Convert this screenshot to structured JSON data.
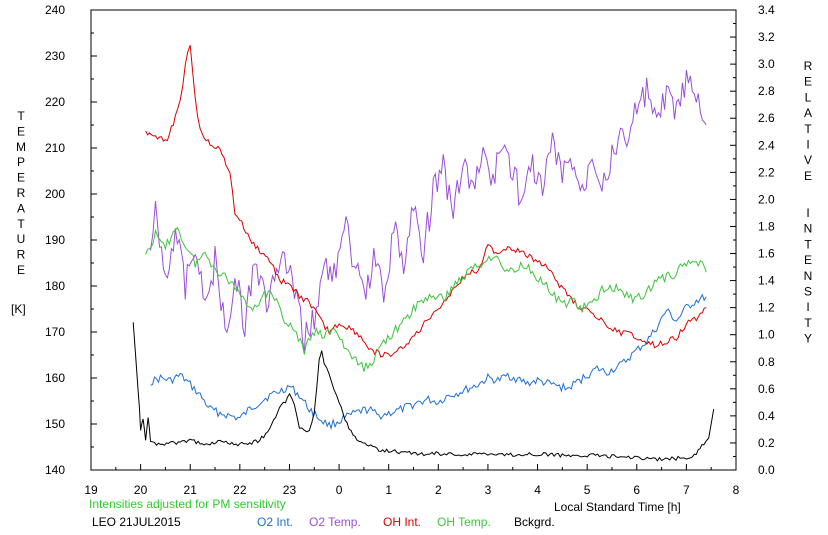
{
  "chart_data": {
    "type": "line",
    "title": "",
    "left_axis": {
      "label_letters": [
        "T",
        "E",
        "M",
        "P",
        "E",
        "R",
        "A",
        "T",
        "U",
        "R",
        "E"
      ],
      "unit": "[K]",
      "ylim": [
        140,
        240
      ],
      "ticks": [
        "140",
        "150",
        "160",
        "170",
        "180",
        "190",
        "200",
        "210",
        "220",
        "230",
        "240"
      ]
    },
    "right_axis": {
      "label_letters_word1": [
        "R",
        "E",
        "L",
        "A",
        "T",
        "I",
        "V",
        "E"
      ],
      "label_letters_word2": [
        "I",
        "N",
        "T",
        "E",
        "N",
        "S",
        "I",
        "T",
        "Y"
      ],
      "ylim": [
        0.0,
        3.4
      ],
      "ticks": [
        "0.0",
        "0.2",
        "0.4",
        "0.6",
        "0.8",
        "1.0",
        "1.2",
        "1.4",
        "1.6",
        "1.8",
        "2.0",
        "2.2",
        "2.4",
        "2.6",
        "2.8",
        "3.0",
        "3.2",
        "3.4"
      ]
    },
    "x_axis": {
      "label": "Local Standard Time [h]",
      "xlim": [
        19,
        32
      ],
      "ticks": [
        "19",
        "20",
        "21",
        "22",
        "23",
        "0",
        "1",
        "2",
        "3",
        "4",
        "5",
        "6",
        "7",
        "8"
      ]
    },
    "note": "Intensities adjusted for PM sensitivity",
    "site_date": "LEO 21JUL2015",
    "colors": {
      "O2 Int.": "#1f6fd6",
      "O2 Temp.": "#9a4fd6",
      "OH Int.": "#d80000",
      "OH Temp.": "#3ec43e",
      "Bckgrd.": "#000000",
      "note": "#2ecc2e"
    },
    "series": [
      {
        "name": "O2 Int.",
        "axis": "right",
        "points": [
          [
            20.2,
            0.65
          ],
          [
            20.4,
            0.68
          ],
          [
            20.6,
            0.66
          ],
          [
            20.8,
            0.7
          ],
          [
            21.0,
            0.63
          ],
          [
            21.2,
            0.55
          ],
          [
            21.4,
            0.45
          ],
          [
            21.6,
            0.42
          ],
          [
            21.8,
            0.4
          ],
          [
            22.0,
            0.38
          ],
          [
            22.2,
            0.45
          ],
          [
            22.4,
            0.5
          ],
          [
            22.6,
            0.55
          ],
          [
            22.8,
            0.58
          ],
          [
            23.0,
            0.62
          ],
          [
            23.2,
            0.55
          ],
          [
            23.4,
            0.45
          ],
          [
            23.6,
            0.38
          ],
          [
            23.8,
            0.33
          ],
          [
            24.0,
            0.36
          ],
          [
            24.2,
            0.4
          ],
          [
            24.4,
            0.43
          ],
          [
            24.6,
            0.45
          ],
          [
            24.8,
            0.4
          ],
          [
            25.0,
            0.42
          ],
          [
            25.2,
            0.44
          ],
          [
            25.4,
            0.47
          ],
          [
            25.6,
            0.5
          ],
          [
            25.8,
            0.52
          ],
          [
            26.0,
            0.5
          ],
          [
            26.2,
            0.55
          ],
          [
            26.4,
            0.57
          ],
          [
            26.6,
            0.6
          ],
          [
            26.8,
            0.63
          ],
          [
            27.0,
            0.68
          ],
          [
            27.2,
            0.66
          ],
          [
            27.4,
            0.7
          ],
          [
            27.6,
            0.67
          ],
          [
            27.8,
            0.64
          ],
          [
            28.0,
            0.66
          ],
          [
            28.2,
            0.64
          ],
          [
            28.4,
            0.62
          ],
          [
            28.6,
            0.6
          ],
          [
            28.8,
            0.65
          ],
          [
            29.0,
            0.7
          ],
          [
            29.2,
            0.75
          ],
          [
            29.4,
            0.72
          ],
          [
            29.7,
            0.78
          ],
          [
            29.9,
            0.85
          ],
          [
            30.2,
            0.95
          ],
          [
            30.4,
            1.05
          ],
          [
            30.6,
            1.18
          ],
          [
            30.8,
            1.1
          ],
          [
            31.0,
            1.2
          ],
          [
            31.2,
            1.25
          ],
          [
            31.4,
            1.28
          ]
        ]
      },
      {
        "name": "O2 Temp.",
        "axis": "left",
        "points": [
          [
            20.2,
            185
          ],
          [
            20.3,
            197
          ],
          [
            20.5,
            182
          ],
          [
            20.7,
            193
          ],
          [
            20.9,
            180
          ],
          [
            21.1,
            190
          ],
          [
            21.3,
            174
          ],
          [
            21.5,
            186
          ],
          [
            21.7,
            170
          ],
          [
            21.9,
            182
          ],
          [
            22.1,
            172
          ],
          [
            22.3,
            187
          ],
          [
            22.5,
            176
          ],
          [
            22.7,
            181
          ],
          [
            22.9,
            186
          ],
          [
            23.1,
            178
          ],
          [
            23.3,
            168
          ],
          [
            23.5,
            174
          ],
          [
            23.7,
            184
          ],
          [
            23.9,
            182
          ],
          [
            24.1,
            195
          ],
          [
            24.3,
            184
          ],
          [
            24.5,
            178
          ],
          [
            24.7,
            186
          ],
          [
            24.9,
            179
          ],
          [
            25.1,
            192
          ],
          [
            25.3,
            185
          ],
          [
            25.5,
            198
          ],
          [
            25.7,
            188
          ],
          [
            25.9,
            200
          ],
          [
            26.1,
            206
          ],
          [
            26.3,
            195
          ],
          [
            26.5,
            208
          ],
          [
            26.7,
            200
          ],
          [
            26.9,
            210
          ],
          [
            27.1,
            202
          ],
          [
            27.3,
            212
          ],
          [
            27.5,
            205
          ],
          [
            27.7,
            198
          ],
          [
            27.9,
            207
          ],
          [
            28.1,
            200
          ],
          [
            28.3,
            212
          ],
          [
            28.5,
            203
          ],
          [
            28.7,
            208
          ],
          [
            28.9,
            200
          ],
          [
            29.1,
            210
          ],
          [
            29.3,
            203
          ],
          [
            29.5,
            208
          ],
          [
            29.8,
            213
          ],
          [
            30.0,
            218
          ],
          [
            30.2,
            222
          ],
          [
            30.4,
            215
          ],
          [
            30.6,
            221
          ],
          [
            30.8,
            218
          ],
          [
            31.0,
            224
          ],
          [
            31.2,
            220
          ],
          [
            31.4,
            215
          ]
        ]
      },
      {
        "name": "OH Int.",
        "axis": "right",
        "points": [
          [
            20.1,
            2.5
          ],
          [
            20.3,
            2.48
          ],
          [
            20.5,
            2.42
          ],
          [
            20.7,
            2.6
          ],
          [
            20.8,
            2.72
          ],
          [
            20.9,
            3.0
          ],
          [
            21.0,
            3.15
          ],
          [
            21.1,
            2.75
          ],
          [
            21.2,
            2.5
          ],
          [
            21.4,
            2.42
          ],
          [
            21.6,
            2.36
          ],
          [
            21.8,
            2.2
          ],
          [
            21.9,
            1.9
          ],
          [
            22.0,
            1.85
          ],
          [
            22.2,
            1.7
          ],
          [
            22.4,
            1.62
          ],
          [
            22.6,
            1.55
          ],
          [
            22.8,
            1.4
          ],
          [
            23.0,
            1.38
          ],
          [
            23.2,
            1.28
          ],
          [
            23.4,
            1.24
          ],
          [
            23.6,
            1.12
          ],
          [
            23.8,
            1.02
          ],
          [
            24.0,
            1.08
          ],
          [
            24.2,
            1.05
          ],
          [
            24.4,
            1.0
          ],
          [
            24.6,
            0.9
          ],
          [
            24.8,
            0.86
          ],
          [
            25.0,
            0.84
          ],
          [
            25.2,
            0.88
          ],
          [
            25.4,
            0.95
          ],
          [
            25.6,
            1.02
          ],
          [
            25.8,
            1.12
          ],
          [
            26.0,
            1.2
          ],
          [
            26.2,
            1.28
          ],
          [
            26.4,
            1.38
          ],
          [
            26.6,
            1.45
          ],
          [
            26.8,
            1.48
          ],
          [
            27.0,
            1.65
          ],
          [
            27.2,
            1.6
          ],
          [
            27.4,
            1.65
          ],
          [
            27.6,
            1.62
          ],
          [
            27.8,
            1.58
          ],
          [
            28.0,
            1.55
          ],
          [
            28.2,
            1.5
          ],
          [
            28.4,
            1.38
          ],
          [
            28.6,
            1.3
          ],
          [
            28.8,
            1.22
          ],
          [
            29.0,
            1.18
          ],
          [
            29.2,
            1.12
          ],
          [
            29.4,
            1.08
          ],
          [
            29.6,
            1.02
          ],
          [
            29.9,
            1.0
          ],
          [
            30.2,
            0.95
          ],
          [
            30.4,
            0.92
          ],
          [
            30.6,
            0.95
          ],
          [
            30.8,
            0.98
          ],
          [
            31.0,
            1.08
          ],
          [
            31.2,
            1.12
          ],
          [
            31.4,
            1.2
          ]
        ]
      },
      {
        "name": "OH Temp.",
        "axis": "left",
        "points": [
          [
            20.1,
            187
          ],
          [
            20.3,
            191
          ],
          [
            20.5,
            188
          ],
          [
            20.7,
            193
          ],
          [
            20.9,
            189
          ],
          [
            21.1,
            185
          ],
          [
            21.3,
            187
          ],
          [
            21.5,
            184
          ],
          [
            21.7,
            182
          ],
          [
            21.9,
            180
          ],
          [
            22.1,
            177
          ],
          [
            22.3,
            175
          ],
          [
            22.5,
            179
          ],
          [
            22.7,
            177
          ],
          [
            22.9,
            173
          ],
          [
            23.1,
            170
          ],
          [
            23.3,
            166
          ],
          [
            23.5,
            170
          ],
          [
            23.7,
            169
          ],
          [
            23.9,
            171
          ],
          [
            24.1,
            167
          ],
          [
            24.3,
            164
          ],
          [
            24.5,
            162
          ],
          [
            24.7,
            164
          ],
          [
            24.9,
            168
          ],
          [
            25.1,
            170
          ],
          [
            25.3,
            172
          ],
          [
            25.5,
            175
          ],
          [
            25.7,
            177
          ],
          [
            25.9,
            178
          ],
          [
            26.1,
            177
          ],
          [
            26.3,
            180
          ],
          [
            26.5,
            182
          ],
          [
            26.7,
            184
          ],
          [
            26.9,
            185
          ],
          [
            27.1,
            187
          ],
          [
            27.3,
            184
          ],
          [
            27.5,
            183
          ],
          [
            27.7,
            185
          ],
          [
            27.9,
            183
          ],
          [
            28.1,
            181
          ],
          [
            28.3,
            178
          ],
          [
            28.5,
            176
          ],
          [
            28.7,
            177
          ],
          [
            28.9,
            175
          ],
          [
            29.1,
            176
          ],
          [
            29.3,
            179
          ],
          [
            29.5,
            180
          ],
          [
            29.8,
            178
          ],
          [
            30.0,
            177
          ],
          [
            30.2,
            179
          ],
          [
            30.4,
            181
          ],
          [
            30.6,
            182
          ],
          [
            30.8,
            183
          ],
          [
            31.0,
            185
          ],
          [
            31.2,
            186
          ],
          [
            31.4,
            183
          ]
        ]
      },
      {
        "name": "Bckgrd.",
        "axis": "right",
        "points": [
          [
            19.85,
            1.1
          ],
          [
            19.95,
            0.6
          ],
          [
            20.0,
            0.3
          ],
          [
            20.05,
            0.38
          ],
          [
            20.1,
            0.22
          ],
          [
            20.15,
            0.4
          ],
          [
            20.2,
            0.2
          ],
          [
            20.4,
            0.19
          ],
          [
            20.6,
            0.2
          ],
          [
            20.8,
            0.2
          ],
          [
            21.0,
            0.22
          ],
          [
            21.2,
            0.2
          ],
          [
            21.4,
            0.2
          ],
          [
            21.6,
            0.21
          ],
          [
            21.8,
            0.2
          ],
          [
            22.0,
            0.19
          ],
          [
            22.2,
            0.2
          ],
          [
            22.4,
            0.22
          ],
          [
            22.6,
            0.3
          ],
          [
            22.8,
            0.45
          ],
          [
            23.0,
            0.55
          ],
          [
            23.1,
            0.48
          ],
          [
            23.2,
            0.32
          ],
          [
            23.3,
            0.28
          ],
          [
            23.4,
            0.3
          ],
          [
            23.5,
            0.42
          ],
          [
            23.6,
            0.82
          ],
          [
            23.65,
            0.88
          ],
          [
            23.7,
            0.78
          ],
          [
            23.8,
            0.72
          ],
          [
            23.9,
            0.6
          ],
          [
            24.0,
            0.5
          ],
          [
            24.2,
            0.3
          ],
          [
            24.4,
            0.22
          ],
          [
            24.6,
            0.18
          ],
          [
            24.8,
            0.15
          ],
          [
            25.0,
            0.14
          ],
          [
            25.5,
            0.12
          ],
          [
            26.0,
            0.12
          ],
          [
            26.5,
            0.11
          ],
          [
            27.0,
            0.12
          ],
          [
            27.5,
            0.11
          ],
          [
            28.0,
            0.12
          ],
          [
            28.5,
            0.11
          ],
          [
            29.0,
            0.11
          ],
          [
            29.5,
            0.1
          ],
          [
            30.0,
            0.09
          ],
          [
            30.5,
            0.08
          ],
          [
            31.0,
            0.09
          ],
          [
            31.2,
            0.12
          ],
          [
            31.35,
            0.2
          ],
          [
            31.45,
            0.25
          ],
          [
            31.55,
            0.45
          ]
        ]
      }
    ]
  }
}
